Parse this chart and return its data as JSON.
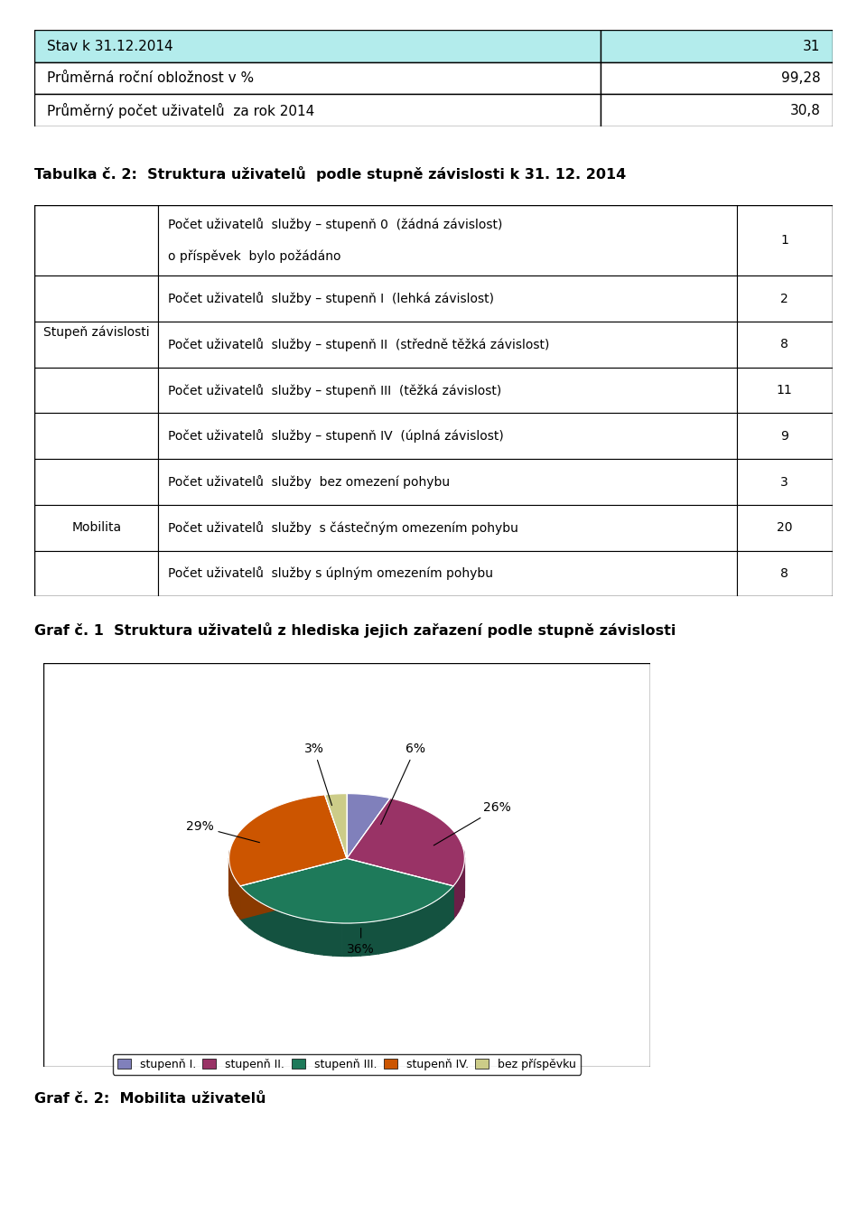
{
  "table1_rows": [
    [
      "Stav k 31.12.2014",
      "31"
    ],
    [
      "Průměrná roční obložnost v %",
      "99,28"
    ],
    [
      "Průměrný počet uživatelů  za rok 2014",
      "30,8"
    ]
  ],
  "table1_header_color": "#b3ecec",
  "table2_title": "Tabulka č. 2:  Struktura uživatelů  podle stupně závislosti k 31. 12. 2014",
  "table2_col2_rows": [
    "Počet uživatelů  služby – stupenň 0  (žádná závislost)\no příspěvek  bylo požádáno",
    "Počet uživatelů  služby – stupenň I  (lehká závislost)",
    "Počet uživatelů  služby – stupenň II  (středně těžká závislost)",
    "Počet uživatelů  služby – stupenň III  (těžká závislost)",
    "Počet uživatelů  služby – stupenň IV  (úplná závislost)",
    "Počet uživatelů  služby  bez omezení pohybu",
    "Počet uživatelů  služby  s částečným omezením pohybu",
    "Počet uživatelů  služby s úplným omezením pohybu"
  ],
  "table2_col3_rows": [
    "1",
    "2",
    "8",
    "11",
    "9",
    "3",
    "20",
    "8"
  ],
  "graph1_title": "Graf č. 1  Struktura uživatelů z hlediska jejich zařazení podle stupně závislosti",
  "pie_values": [
    6,
    26,
    36,
    29,
    3
  ],
  "pie_labels": [
    "6%",
    "26%",
    "36%",
    "29%",
    "3%"
  ],
  "pie_colors": [
    "#8080bb",
    "#993366",
    "#1e7a5a",
    "#cc5500",
    "#cccc88"
  ],
  "pie_side_colors": [
    "#606090",
    "#6b1f47",
    "#145240",
    "#8a3a00",
    "#aaaa66"
  ],
  "pie_legend_labels": [
    "stupenň I.",
    "stupenň II.",
    "stupenň III.",
    "stupenň IV.",
    "bez příspěvku"
  ],
  "graph2_title": "Graf č. 2:  Mobilita uživatelů",
  "bg_color": "#ffffff",
  "text_color": "#000000"
}
